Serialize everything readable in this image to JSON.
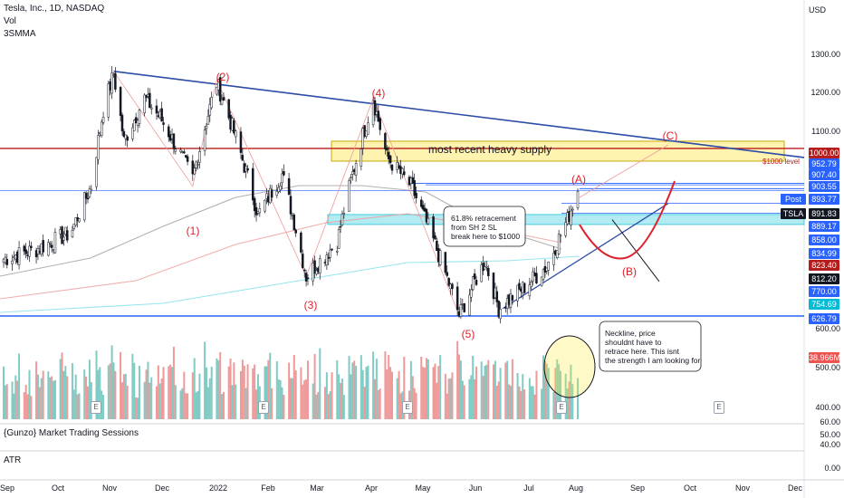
{
  "header": {
    "symbol_line": "Tesla, Inc., 1D, NASDAQ",
    "indicator_vol": "Vol",
    "indicator_ma": "3SMMA"
  },
  "panes": {
    "sessions_label": "{Gunzo} Market Trading Sessions",
    "atr_label": "ATR"
  },
  "axis": {
    "currency": "USD",
    "price_ticks": [
      "1300.00",
      "1200.00",
      "1100.00",
      "600.00",
      "500.00",
      "400.00"
    ],
    "sessions_ticks": [
      "60.00",
      "50.00",
      "40.00"
    ],
    "atr_ticks": [
      "0.00"
    ],
    "x_ticks": [
      "Sep",
      "Oct",
      "Nov",
      "Dec",
      "2022",
      "Feb",
      "Mar",
      "Apr",
      "May",
      "Jun",
      "Jul",
      "Aug",
      "Sep",
      "Oct",
      "Nov",
      "Dec"
    ]
  },
  "price_tags": [
    {
      "label": "1000.00",
      "color": "#b71c1c"
    },
    {
      "label": "952.79",
      "color": "#2962ff"
    },
    {
      "label": "907.40",
      "color": "#2962ff"
    },
    {
      "label": "903.55",
      "color": "#2962ff"
    },
    {
      "label": "893.77",
      "color": "#2962ff"
    },
    {
      "label": "891.83",
      "color": "#131722"
    },
    {
      "label": "889.17",
      "color": "#2962ff"
    },
    {
      "label": "858.00",
      "color": "#2962ff"
    },
    {
      "label": "834.99",
      "color": "#2962ff"
    },
    {
      "label": "823.40",
      "color": "#b71c1c"
    },
    {
      "label": "812.20",
      "color": "#131722"
    },
    {
      "label": "770.00",
      "color": "#2962ff"
    },
    {
      "label": "754.69",
      "color": "#00bcd4"
    },
    {
      "label": "626.79",
      "color": "#2962ff"
    },
    {
      "label": "38.966M",
      "color": "#ef5350"
    }
  ],
  "side_labels": {
    "post": "Post",
    "ticker": "TSLA"
  },
  "annotations": {
    "waves": [
      "(1)",
      "(2)",
      "(3)",
      "(4)",
      "(5)",
      "(A)",
      "(B)",
      "(C)"
    ],
    "supply_box": "most recent heavy supply",
    "retracement_note": [
      "61.8% retracement",
      "from SH 2 SL",
      "break here to $1000"
    ],
    "neckline_note": [
      "Neckline, price",
      "shouldnt have to",
      "retrace here. This isnt",
      "the strength I am looking for"
    ],
    "line_label": "$1000 level",
    "earnings_marker": "E"
  },
  "colors": {
    "up": "#26a69a",
    "down": "#ef5350",
    "trendline": "#2a4ba8",
    "resistance": "#b71c1c",
    "supply_fill": "#fff3b0",
    "demand_fill": "#b2ebf2"
  },
  "chart_data": {
    "type": "candlestick",
    "title": "Tesla, Inc., 1D, NASDAQ",
    "ylabel": "USD",
    "ylim": [
      580,
      1330
    ],
    "x": [
      "2021-09",
      "2021-10",
      "2021-11",
      "2021-12",
      "2022-01",
      "2022-02",
      "2022-03",
      "2022-04",
      "2022-05",
      "2022-06",
      "2022-07",
      "2022-08"
    ],
    "close_path": [
      {
        "x": "2021-09-01",
        "y": 735
      },
      {
        "x": "2021-09-20",
        "y": 755
      },
      {
        "x": "2021-10-10",
        "y": 790
      },
      {
        "x": "2021-10-22",
        "y": 900
      },
      {
        "x": "2021-10-29",
        "y": 1115
      },
      {
        "x": "2021-11-04",
        "y": 1230
      },
      {
        "x": "2021-11-10",
        "y": 1020
      },
      {
        "x": "2021-11-22",
        "y": 1150
      },
      {
        "x": "2021-12-01",
        "y": 1090
      },
      {
        "x": "2021-12-20",
        "y": 920
      },
      {
        "x": "2022-01-03",
        "y": 1200
      },
      {
        "x": "2022-01-27",
        "y": 830
      },
      {
        "x": "2022-02-10",
        "y": 930
      },
      {
        "x": "2022-02-24",
        "y": 700
      },
      {
        "x": "2022-03-14",
        "y": 770
      },
      {
        "x": "2022-04-04",
        "y": 1145
      },
      {
        "x": "2022-04-12",
        "y": 975
      },
      {
        "x": "2022-04-26",
        "y": 900
      },
      {
        "x": "2022-05-24",
        "y": 628
      },
      {
        "x": "2022-06-08",
        "y": 730
      },
      {
        "x": "2022-06-16",
        "y": 640
      },
      {
        "x": "2022-07-01",
        "y": 680
      },
      {
        "x": "2022-07-14",
        "y": 720
      },
      {
        "x": "2022-07-26",
        "y": 820
      },
      {
        "x": "2022-08-01",
        "y": 892
      }
    ],
    "levels": [
      1000,
      952.79,
      907.4,
      903.55,
      893.77,
      889.17,
      858,
      834.99,
      823.4,
      770,
      754.69,
      626.79
    ],
    "volume_last": "38.966M"
  }
}
